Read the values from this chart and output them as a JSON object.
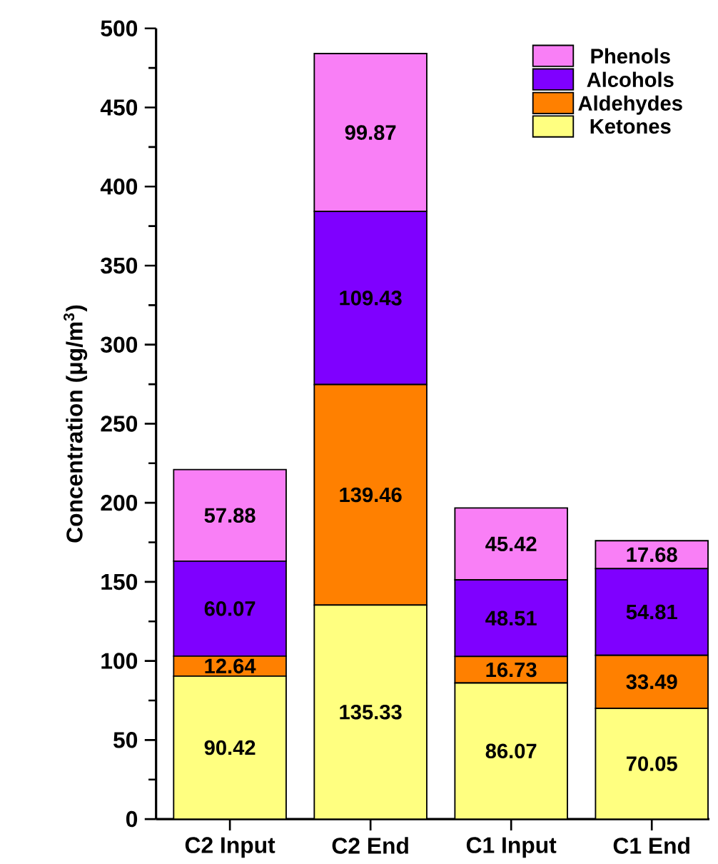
{
  "chart_data": {
    "type": "bar",
    "stacked": true,
    "ylabel": "Concentration (μg/m$^{3}$)",
    "categories": [
      "C2 Input",
      "C2 End",
      "C1 Input",
      "C1 End"
    ],
    "series": [
      {
        "name": "Ketones",
        "color": "#ffff80",
        "values": [
          90.42,
          135.33,
          86.07,
          70.05
        ]
      },
      {
        "name": "Aldehydes",
        "color": "#ff8000",
        "values": [
          12.64,
          139.46,
          16.73,
          33.49
        ]
      },
      {
        "name": "Alcohols",
        "color": "#7f00ff",
        "values": [
          60.07,
          109.43,
          48.51,
          54.81
        ]
      },
      {
        "name": "Phenols",
        "color": "#f97ff6",
        "values": [
          57.88,
          99.87,
          45.42,
          17.68
        ]
      }
    ],
    "ylim": [
      0,
      500
    ],
    "yticks": [
      0,
      50,
      100,
      150,
      200,
      250,
      300,
      350,
      400,
      450,
      500
    ],
    "data_labels": true,
    "legend": "top right"
  }
}
